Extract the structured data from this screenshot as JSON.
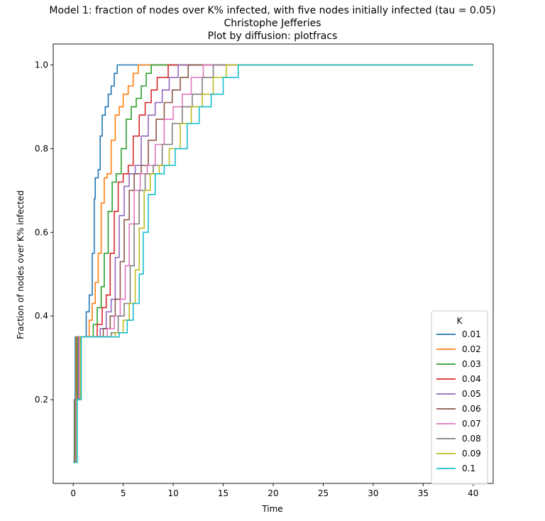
{
  "chart_data": {
    "type": "line",
    "title_lines": [
      "Model 1: fraction of nodes over K% infected, with five nodes initially infected (tau = 0.05)",
      "Christophe Jefferies",
      "Plot by diffusion: plotfracs"
    ],
    "xlabel": "Time",
    "ylabel": "Fraction of nodes over K% infected",
    "xlim": [
      -2,
      42
    ],
    "ylim": [
      0,
      1.05
    ],
    "xticks": [
      0,
      5,
      10,
      15,
      20,
      25,
      30,
      35,
      40
    ],
    "yticks": [
      0.2,
      0.4,
      0.6,
      0.8,
      1.0
    ],
    "grid": false,
    "legend": {
      "title": "K",
      "placement": "lower-right"
    },
    "series": [
      {
        "name": "0.01",
        "color": "#1f77b4",
        "x": [
          0,
          0.1,
          0.2,
          0.3,
          0.4,
          0.6,
          1.0,
          1.3,
          1.6,
          1.9,
          2.1,
          2.2,
          2.5,
          2.7,
          2.9,
          3.2,
          3.5,
          3.8,
          4.1,
          4.4,
          40
        ],
        "y": [
          0.05,
          0.2,
          0.35,
          0.35,
          0.35,
          0.35,
          0.35,
          0.41,
          0.45,
          0.55,
          0.68,
          0.73,
          0.75,
          0.83,
          0.88,
          0.9,
          0.93,
          0.95,
          0.98,
          1.0,
          1.0
        ]
      },
      {
        "name": "0.02",
        "color": "#ff7f0e",
        "x": [
          0,
          0.15,
          0.3,
          0.5,
          0.8,
          1.2,
          1.6,
          1.9,
          2.2,
          2.5,
          2.8,
          3.1,
          3.4,
          3.8,
          4.2,
          4.6,
          5.0,
          5.5,
          6.0,
          6.5,
          40
        ],
        "y": [
          0.05,
          0.2,
          0.35,
          0.35,
          0.35,
          0.35,
          0.39,
          0.43,
          0.48,
          0.55,
          0.67,
          0.73,
          0.74,
          0.82,
          0.88,
          0.9,
          0.93,
          0.95,
          0.98,
          1.0,
          1.0
        ]
      },
      {
        "name": "0.03",
        "color": "#2ca02c",
        "x": [
          0,
          0.2,
          0.4,
          0.7,
          1.0,
          1.5,
          2.0,
          2.4,
          2.8,
          3.1,
          3.5,
          3.9,
          4.3,
          4.8,
          5.3,
          5.8,
          6.3,
          6.8,
          7.3,
          7.8,
          40
        ],
        "y": [
          0.05,
          0.2,
          0.35,
          0.35,
          0.35,
          0.35,
          0.38,
          0.42,
          0.47,
          0.55,
          0.65,
          0.72,
          0.74,
          0.8,
          0.87,
          0.9,
          0.92,
          0.95,
          0.98,
          1.0,
          1.0
        ]
      },
      {
        "name": "0.04",
        "color": "#d62728",
        "x": [
          0,
          0.25,
          0.5,
          0.8,
          1.2,
          1.8,
          2.4,
          2.9,
          3.3,
          3.7,
          4.1,
          4.5,
          5.0,
          5.5,
          6.0,
          6.6,
          7.2,
          7.8,
          8.4,
          9.5,
          40
        ],
        "y": [
          0.05,
          0.2,
          0.35,
          0.35,
          0.35,
          0.35,
          0.38,
          0.42,
          0.45,
          0.55,
          0.65,
          0.72,
          0.74,
          0.76,
          0.83,
          0.88,
          0.91,
          0.94,
          0.97,
          1.0,
          1.0
        ]
      },
      {
        "name": "0.05",
        "color": "#9467bd",
        "x": [
          0,
          0.25,
          0.5,
          0.9,
          1.4,
          2.0,
          2.7,
          3.3,
          3.8,
          4.2,
          4.6,
          5.1,
          5.6,
          6.2,
          6.8,
          7.5,
          8.2,
          8.9,
          9.6,
          10.5,
          40
        ],
        "y": [
          0.05,
          0.2,
          0.35,
          0.35,
          0.35,
          0.35,
          0.37,
          0.41,
          0.44,
          0.54,
          0.64,
          0.71,
          0.74,
          0.76,
          0.83,
          0.88,
          0.91,
          0.94,
          0.97,
          1.0,
          1.0
        ]
      },
      {
        "name": "0.06",
        "color": "#8c564b",
        "x": [
          0,
          0.3,
          0.6,
          1.0,
          1.6,
          2.3,
          3.0,
          3.7,
          4.2,
          4.7,
          5.1,
          5.6,
          6.1,
          6.8,
          7.5,
          8.3,
          9.1,
          9.9,
          10.7,
          11.5,
          40
        ],
        "y": [
          0.05,
          0.2,
          0.35,
          0.35,
          0.35,
          0.35,
          0.37,
          0.4,
          0.44,
          0.53,
          0.63,
          0.7,
          0.74,
          0.76,
          0.82,
          0.87,
          0.91,
          0.94,
          0.97,
          1.0,
          1.0
        ]
      },
      {
        "name": "0.07",
        "color": "#e377c2",
        "x": [
          0,
          0.3,
          0.6,
          1.1,
          1.8,
          2.6,
          3.4,
          4.1,
          4.7,
          5.2,
          5.6,
          6.1,
          6.7,
          7.4,
          8.2,
          9.1,
          10.0,
          10.9,
          11.8,
          13.0,
          40
        ],
        "y": [
          0.05,
          0.2,
          0.35,
          0.35,
          0.35,
          0.35,
          0.37,
          0.4,
          0.44,
          0.52,
          0.62,
          0.7,
          0.74,
          0.76,
          0.81,
          0.87,
          0.9,
          0.93,
          0.97,
          1.0,
          1.0
        ]
      },
      {
        "name": "0.08",
        "color": "#7f7f7f",
        "x": [
          0,
          0.35,
          0.7,
          1.2,
          2.0,
          2.9,
          3.8,
          4.5,
          5.1,
          5.7,
          6.1,
          6.6,
          7.2,
          8.0,
          8.9,
          9.9,
          10.9,
          11.9,
          12.9,
          14.0,
          40
        ],
        "y": [
          0.05,
          0.2,
          0.35,
          0.35,
          0.35,
          0.35,
          0.36,
          0.4,
          0.43,
          0.52,
          0.62,
          0.7,
          0.74,
          0.76,
          0.81,
          0.86,
          0.9,
          0.93,
          0.97,
          1.0,
          1.0
        ]
      },
      {
        "name": "0.09",
        "color": "#bcbd22",
        "x": [
          0,
          0.35,
          0.7,
          1.3,
          2.2,
          3.2,
          4.2,
          5.0,
          5.6,
          6.2,
          6.6,
          7.1,
          7.7,
          8.6,
          9.6,
          10.7,
          11.8,
          12.9,
          14.0,
          15.3,
          40
        ],
        "y": [
          0.05,
          0.2,
          0.35,
          0.35,
          0.35,
          0.35,
          0.36,
          0.39,
          0.43,
          0.51,
          0.61,
          0.7,
          0.74,
          0.76,
          0.8,
          0.86,
          0.9,
          0.93,
          0.97,
          1.0,
          1.0
        ]
      },
      {
        "name": "0.1",
        "color": "#17becf",
        "x": [
          0,
          0.4,
          0.8,
          1.4,
          2.4,
          3.5,
          4.6,
          5.4,
          6.0,
          6.6,
          7.0,
          7.5,
          8.2,
          9.1,
          10.2,
          11.4,
          12.6,
          13.8,
          15.0,
          16.5,
          40
        ],
        "y": [
          0.05,
          0.2,
          0.35,
          0.35,
          0.35,
          0.35,
          0.36,
          0.39,
          0.43,
          0.5,
          0.6,
          0.69,
          0.74,
          0.76,
          0.8,
          0.86,
          0.9,
          0.93,
          0.97,
          1.0,
          1.0
        ]
      }
    ]
  }
}
